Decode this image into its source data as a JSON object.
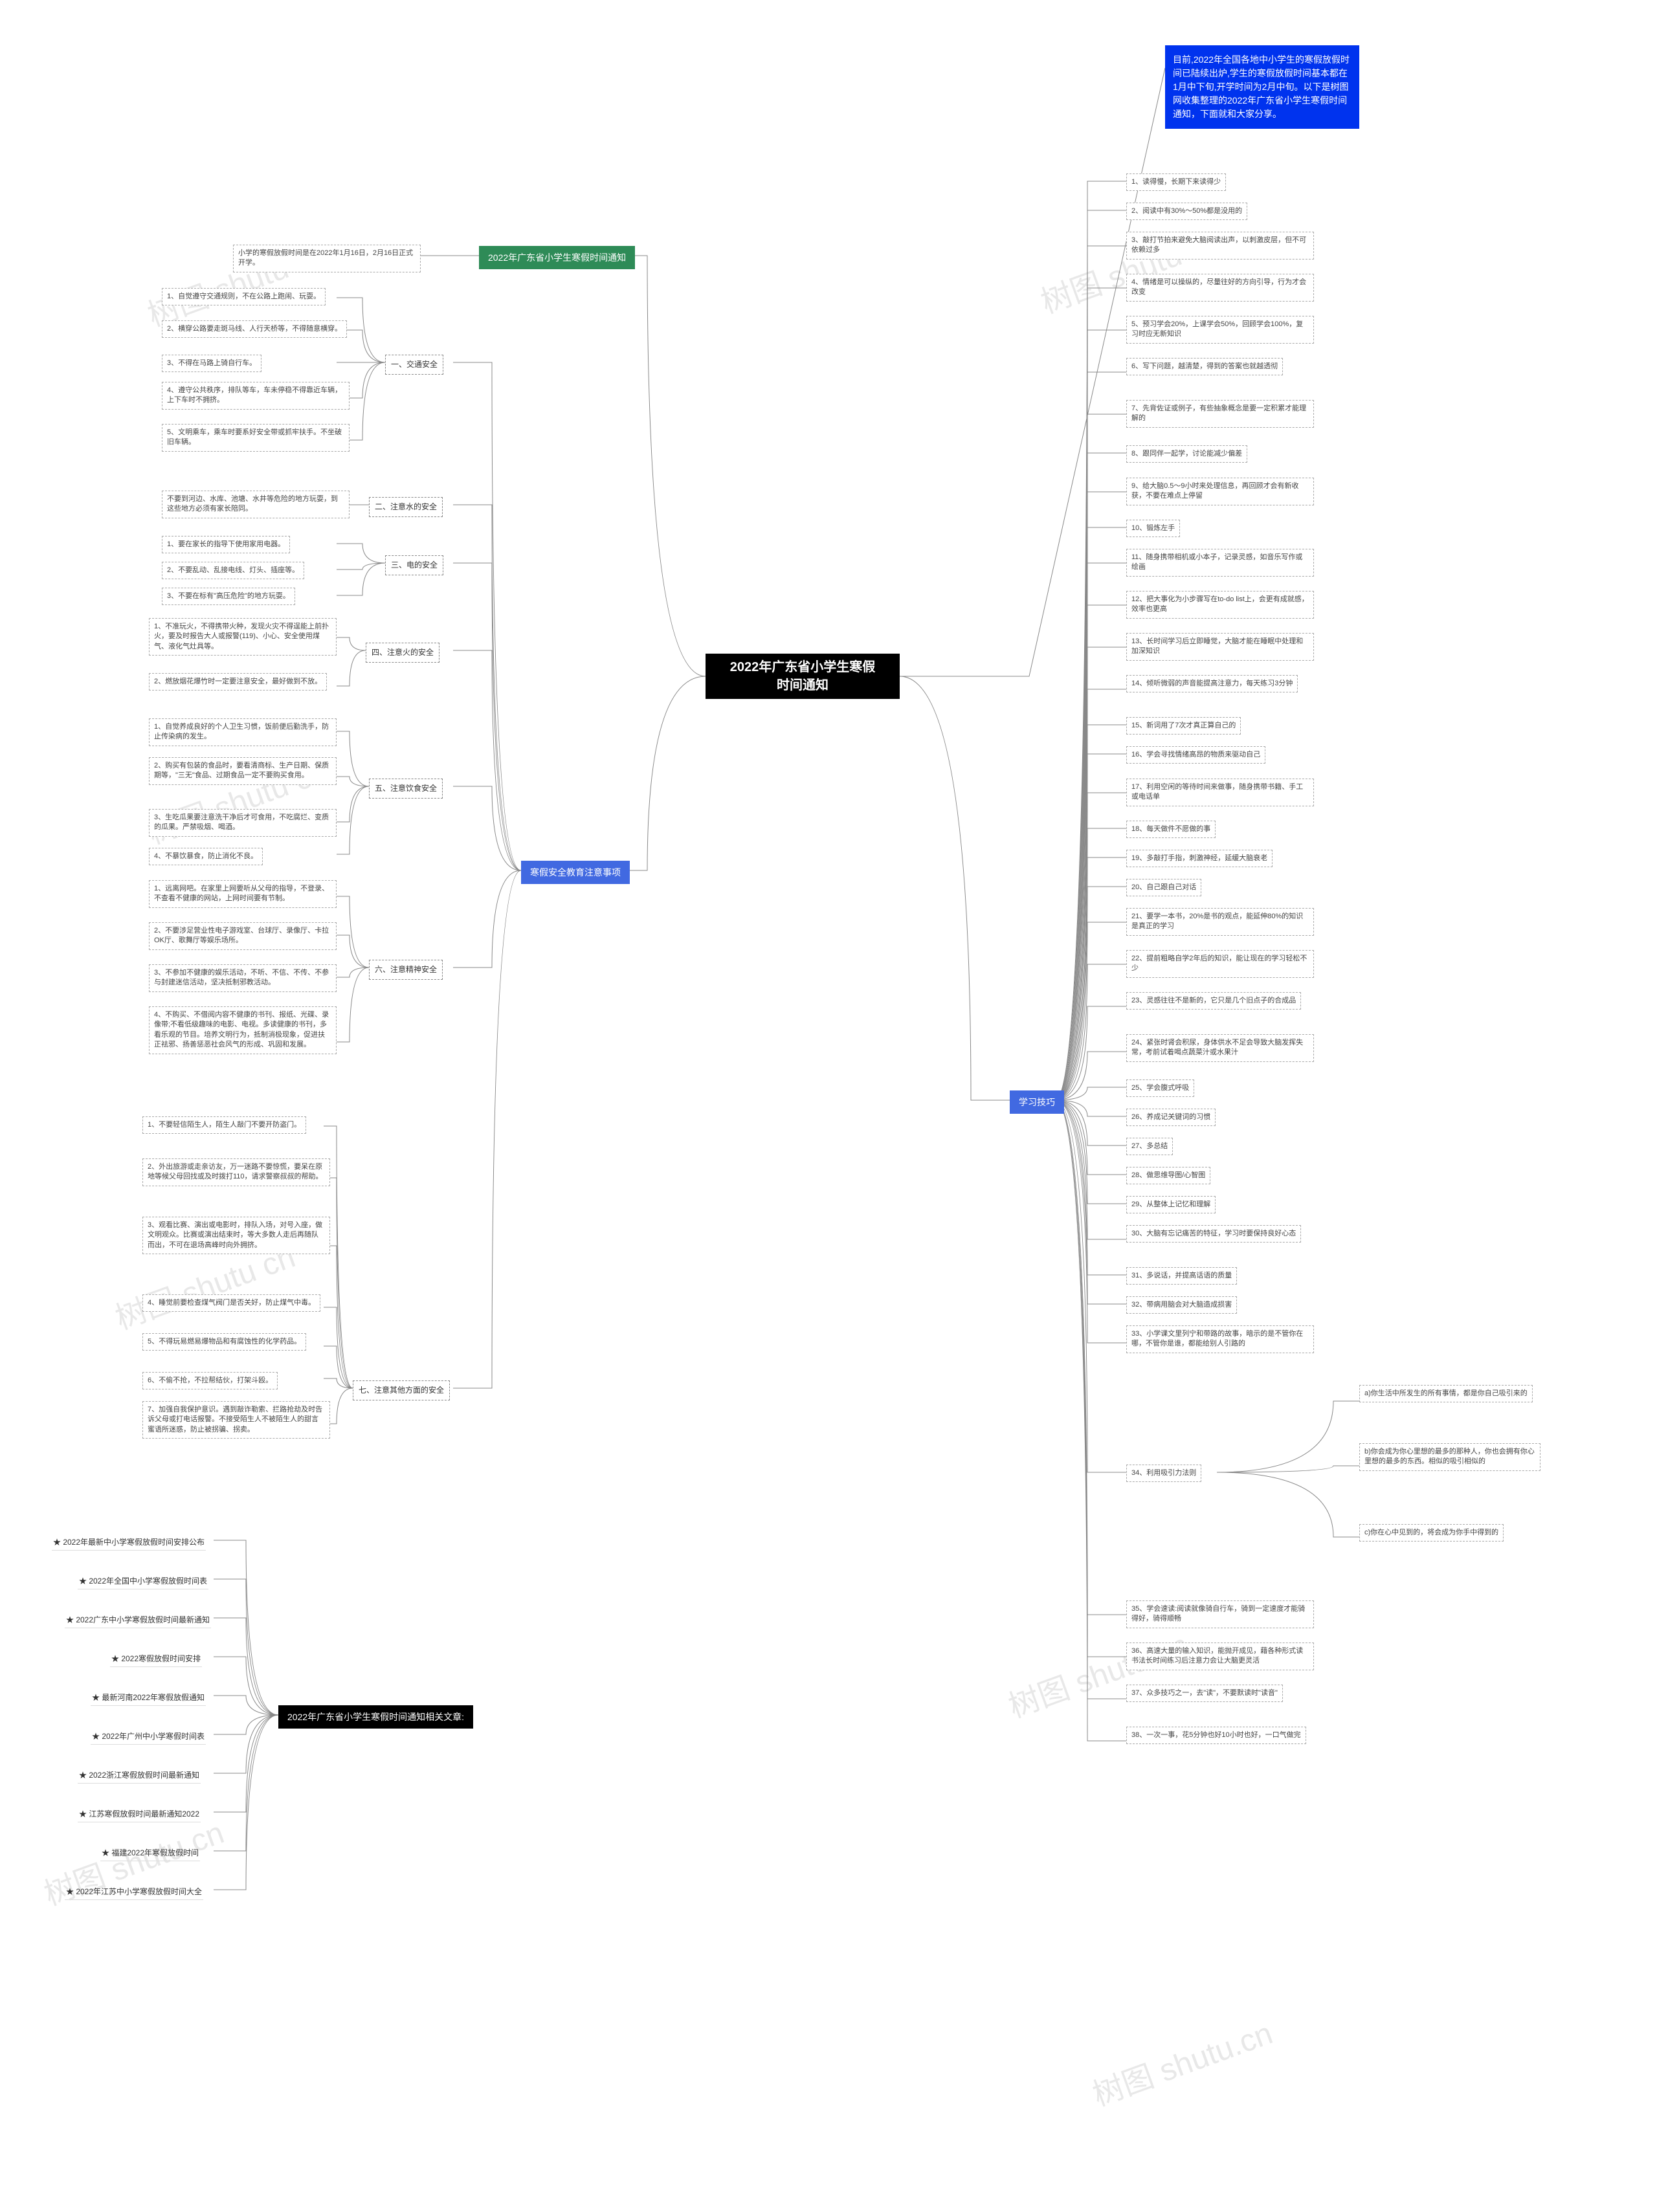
{
  "central": {
    "title": "2022年广东省小学生寒假\n时间通知"
  },
  "intro": {
    "text": "目前,2022年全国各地中小学生的寒假放假时间已陆续出炉,学生的寒假放假时间基本都在1月中下旬,开学时间为2月中旬。以下是树图网收集整理的2022年广东省小学生寒假时间通知，下面就和大家分享。"
  },
  "topics": {
    "t1": "2022年广东省小学生寒假时间通知",
    "t2": "寒假安全教育注意事项",
    "t3": "学习技巧",
    "t4": "2022年广东省小学生寒假时间通知相关文章:"
  },
  "t1_content": "小学的寒假放假时间是在2022年1月16日，2月16日正式开学。",
  "safety": {
    "s1": "一、交通安全",
    "s2": "二、注意水的安全",
    "s3": "三、电的安全",
    "s4": "四、注意火的安全",
    "s5": "五、注意饮食安全",
    "s6": "六、注意精神安全",
    "s7": "七、注意其他方面的安全"
  },
  "s1_items": {
    "i1": "1、自觉遵守交通规则，不在公路上跑闹、玩耍。",
    "i2": "2、横穿公路要走斑马线、人行天桥等，不得随意横穿。",
    "i3": "3、不得在马路上骑自行车。",
    "i4": "4、遵守公共秩序，排队等车，车未停稳不得靠近车辆，上下车时不拥挤。",
    "i5": "5、文明乘车，乘车时要系好安全带或抓牢扶手。不坐破旧车辆。"
  },
  "s2_items": {
    "i1": "不要到河边、水库、池塘、水井等危险的地方玩耍，到这些地方必须有家长陪同。"
  },
  "s3_items": {
    "i1": "1、要在家长的指导下使用家用电器。",
    "i2": "2、不要乱动、乱接电线、灯头、插座等。",
    "i3": "3、不要在标有\"高压危险\"的地方玩耍。"
  },
  "s4_items": {
    "i1": "1、不准玩火，不得携带火种，发现火灾不得逞能上前扑火，要及时报告大人或报警(119)、小心、安全使用煤气、液化气灶具等。",
    "i2": "2、燃放烟花爆竹时一定要注意安全，最好做到不放。"
  },
  "s5_items": {
    "i1": "1、自觉养成良好的个人卫生习惯，饭前便后勤洗手，防止传染病的发生。",
    "i2": "2、购买有包装的食品时，要看清商标、生产日期、保质期等，\"三无\"食品、过期食品一定不要购买食用。",
    "i3": "3、生吃瓜果要注意洗干净后才可食用，不吃腐烂、变质的瓜果。严禁吸烟、喝酒。",
    "i4": "4、不暴饮暴食，防止消化不良。"
  },
  "s6_items": {
    "i1": "1、远离网吧。在家里上网要听从父母的指导，不登录、不查看不健康的网站，上网时间要有节制。",
    "i2": "2、不要涉足营业性电子游戏室、台球厅、录像厅、卡拉OK厅、歌舞厅等娱乐场所。",
    "i3": "3、不参加不健康的娱乐活动，不听、不信、不传、不参与封建迷信活动，坚决抵制邪教活动。",
    "i4": "4、不购买、不借阅内容不健康的书刊、报纸、光碟、录像带;不看低级趣味的电影、电视。多读健康的书刊，多看乐观的节目。培养文明行为，抵制消极现象，促进扶正祛邪、扬善惩恶社会风气的形成、巩固和发展。"
  },
  "s7_items": {
    "i1": "1、不要轻信陌生人，陌生人敲门不要开防盗门。",
    "i2": "2、外出旅游或走亲访友，万一迷路不要惊慌，要呆在原地等候父母回找或及时拨打110，请求警察叔叔的帮助。",
    "i3": "3、观看比赛、演出或电影时，排队入场，对号入座，做文明观众。比赛或演出结束时，等大多数人走后再随队而出，不可在退场高峰时向外拥挤。",
    "i4": "4、睡觉前要检查煤气阀门是否关好，防止煤气中毒。",
    "i5": "5、不得玩易燃易爆物品和有腐蚀性的化学药品。",
    "i6": "6、不偷不抢，不拉帮结伙，打架斗殴。",
    "i7": "7、加强自我保护意识。遇到敲诈勒索、拦路抢劫及时告诉父母或打电话报警。不接受陌生人不被陌生人的甜言蜜语所迷惑，防止被拐骗、拐卖。"
  },
  "tips": {
    "t1": "1、读得慢，长期下来读得少",
    "t2": "2、阅读中有30%～50%都是没用的",
    "t3": "3、敲打节拍来避免大脑阅读出声，以刺激皮层，但不可依赖过多",
    "t4": "4、情绪是可以操纵的，尽量往好的方向引导，行为才会改变",
    "t5": "5、预习学会20%，上课学会50%，回顾学会100%，复习时应无新知识",
    "t6": "6、写下问题，越清楚，得到的答案也就越透彻",
    "t7": "7、先背佐证或例子，有些抽象概念是要一定积累才能理解的",
    "t8": "8、跟同伴一起学，讨论能减少偏差",
    "t9": "9、给大脑0.5～9小时来处理信息，再回顾才会有新收获，不要在难点上停留",
    "t10": "10、锻炼左手",
    "t11": "11、随身携带相机或小本子，记录灵感，如音乐写作或绘画",
    "t12": "12、把大事化为小步骤写在to-do list上，会更有成就感，效率也更高",
    "t13": "13、长时间学习后立即睡觉，大脑才能在睡眠中处理和加深知识",
    "t14": "14、倾听微弱的声音能提高注意力，每天练习3分钟",
    "t15": "15、新词用了7次才真正算自己的",
    "t16": "16、学会寻找情绪高昂的物质来驱动自己",
    "t17": "17、利用空闲的等待时间来做事，随身携带书籍、手工或电话单",
    "t18": "18、每天做件不愿做的事",
    "t19": "19、多敲打手指，刺激神经，延缓大脑衰老",
    "t20": "20、自己跟自己对话",
    "t21": "21、要学一本书，20%是书的观点，能延伸80%的知识是真正的学习",
    "t22": "22、提前粗略自学2年后的知识，能让现在的学习轻松不少",
    "t23": "23、灵感往往不是新的，它只是几个旧点子的合成品",
    "t24": "24、紧张时肾会积尿，身体供水不足会导致大脑发挥失常，考前试着喝点蔬菜汁或水果汁",
    "t25": "25、学会腹式呼吸",
    "t26": "26、养成记关键词的习惯",
    "t27": "27、多总结",
    "t28": "28、做思维导图/心智图",
    "t29": "29、从整体上记忆和理解",
    "t30": "30、大脑有忘记痛苦的特征，学习时要保持良好心态",
    "t31": "31、多说话，并提高话语的质量",
    "t32": "32、带病用脑会对大脑造成损害",
    "t33": "33、小学课文里列宁和带路的故事，暗示的是不管你在哪，不管你是谁，都能给别人引路的",
    "t34": "34、利用吸引力法则",
    "t34a": "a)你生活中所发生的所有事情，都是你自己吸引来的",
    "t34b": "b)你会成为你心里想的最多的那种人，你也会拥有你心里想的最多的东西。相似的吸引相似的",
    "t34c": "c)你在心中见到的，将会成为你手中得到的",
    "t35": "35、学会速读:阅读就像骑自行车，骑到一定速度才能骑得好，骑得顺畅",
    "t36": "36、高速大量的输入知识，能抛开成见，藉各种形式读书法长时间练习后注意力会让大脑更灵活",
    "t37": "37、众多技巧之一，去\"读\"，不要默读时\"读音\"",
    "t38": "38、一次一事，花5分钟也好10小时也好，一口气做完"
  },
  "related": {
    "r1": "★ 2022年最新中小学寒假放假时间安排公布",
    "r2": "★ 2022年全国中小学寒假放假时间表",
    "r3": "★ 2022广东中小学寒假放假时间最新通知",
    "r4": "★ 2022寒假放假时间安排",
    "r5": "★ 最新河南2022年寒假放假通知",
    "r6": "★ 2022年广州中小学寒假时间表",
    "r7": "★ 2022浙江寒假放假时间最新通知",
    "r8": "★ 江苏寒假放假时间最新通知2022",
    "r9": "★ 福建2022年寒假放假时间",
    "r10": "★ 2022年江苏中小学寒假放假时间大全"
  },
  "colors": {
    "central_bg": "#000000",
    "intro_bg": "#0033ee",
    "topic_green": "#2e8b57",
    "topic_blue": "#4169e1",
    "border_dash": "#888888",
    "watermark": "#e8e8e8"
  }
}
